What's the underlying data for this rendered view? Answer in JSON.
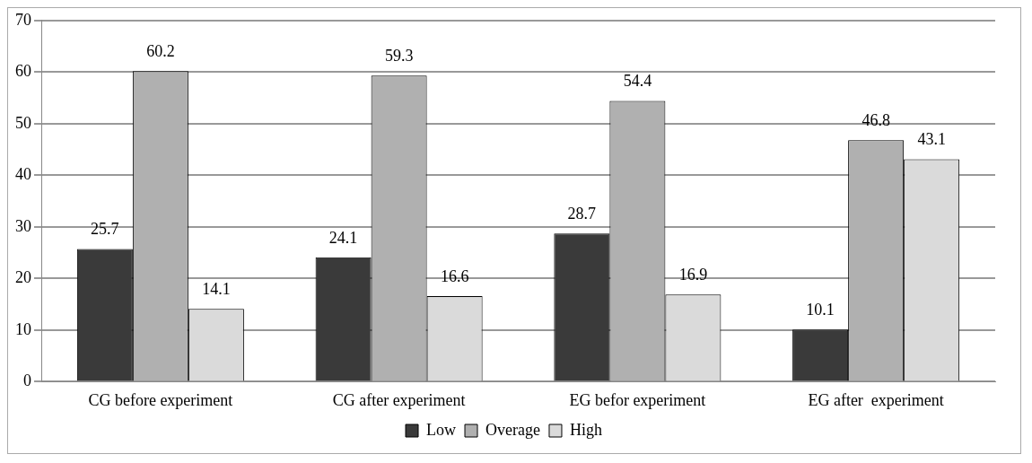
{
  "chart_data": {
    "type": "bar",
    "categories": [
      "CG before experiment",
      "CG after experiment",
      "EG befor experiment",
      "EG after  experiment"
    ],
    "series": [
      {
        "name": "Low",
        "color": "#3a3a3a",
        "values": [
          25.7,
          24.1,
          28.7,
          10.1
        ]
      },
      {
        "name": "Overage",
        "color": "#b0b0b0",
        "values": [
          60.2,
          59.3,
          54.4,
          46.8
        ]
      },
      {
        "name": "High",
        "color": "#dadada",
        "values": [
          14.1,
          16.6,
          16.9,
          43.1
        ]
      }
    ],
    "ylim": [
      0,
      70
    ],
    "yticks": [
      0,
      10,
      20,
      30,
      40,
      50,
      60,
      70
    ],
    "grid": "y",
    "legend": "bottom",
    "data_labels": true
  }
}
